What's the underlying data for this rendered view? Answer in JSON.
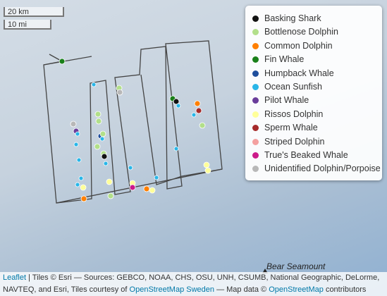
{
  "scale": {
    "metric": "20 km",
    "imperial": "10 mi"
  },
  "legend": [
    {
      "name": "Basking Shark",
      "color": "#111111"
    },
    {
      "name": "Bottlenose Dolphin",
      "color": "#b2df8a"
    },
    {
      "name": "Common Dolphin",
      "color": "#ff7f00"
    },
    {
      "name": "Fin Whale",
      "color": "#1a801a"
    },
    {
      "name": "Humpback Whale",
      "color": "#1f4e9c"
    },
    {
      "name": "Ocean Sunfish",
      "color": "#29b6e8"
    },
    {
      "name": "Pilot Whale",
      "color": "#6a3d9a"
    },
    {
      "name": "Rissos Dolphin",
      "color": "#ffff99"
    },
    {
      "name": "Sperm Whale",
      "color": "#a52a2a"
    },
    {
      "name": "Striped Dolphin",
      "color": "#f4a0a0"
    },
    {
      "name": "True's Beaked Whale",
      "color": "#cc1a8a"
    },
    {
      "name": "Unidentified Dolphin/Porpoise",
      "color": "#b8b8b8"
    }
  ],
  "labels": {
    "seamount": "Bear Seamount"
  },
  "attribution": {
    "leaflet": "Leaflet",
    "tiles": "| Tiles © Esri — Sources: GEBCO, NOAA, CHS, OSU, UNH, CSUMB, National Geographic, DeLorme, NAVTEQ, and Esri, Tiles courtesy of",
    "osm_sweden": "OpenStreetMap Sweden",
    "map_data": "— Map data ©",
    "osm": "OpenStreetMap",
    "contributors": "contributors"
  }
}
